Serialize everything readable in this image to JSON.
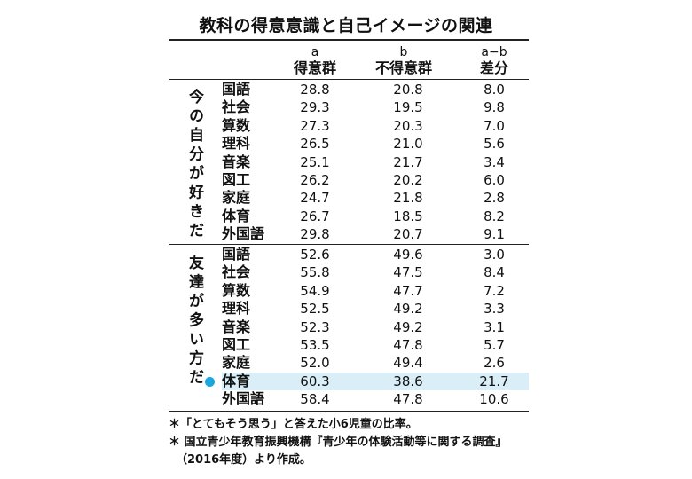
{
  "title": "教科の得意意識と自己イメージの関連",
  "columns": {
    "a": {
      "sub": "a",
      "label": "得意群"
    },
    "b": {
      "sub": "b",
      "label": "不得意群"
    },
    "diff": {
      "sub": "a−b",
      "label": "差分"
    }
  },
  "groups": [
    {
      "label": "今の自分が好きだ",
      "rows": [
        {
          "subject": "国語",
          "a": "28.8",
          "b": "20.8",
          "diff": "8.0"
        },
        {
          "subject": "社会",
          "a": "29.3",
          "b": "19.5",
          "diff": "9.8"
        },
        {
          "subject": "算数",
          "a": "27.3",
          "b": "20.3",
          "diff": "7.0"
        },
        {
          "subject": "理科",
          "a": "26.5",
          "b": "21.0",
          "diff": "5.6"
        },
        {
          "subject": "音楽",
          "a": "25.1",
          "b": "21.7",
          "diff": "3.4"
        },
        {
          "subject": "図工",
          "a": "26.2",
          "b": "20.2",
          "diff": "6.0"
        },
        {
          "subject": "家庭",
          "a": "24.7",
          "b": "21.8",
          "diff": "2.8"
        },
        {
          "subject": "体育",
          "a": "26.7",
          "b": "18.5",
          "diff": "8.2"
        },
        {
          "subject": "外国語",
          "a": "29.8",
          "b": "20.7",
          "diff": "9.1"
        }
      ]
    },
    {
      "label": "友達が多い方だ",
      "rows": [
        {
          "subject": "国語",
          "a": "52.6",
          "b": "49.6",
          "diff": "3.0"
        },
        {
          "subject": "社会",
          "a": "55.8",
          "b": "47.5",
          "diff": "8.4"
        },
        {
          "subject": "算数",
          "a": "54.9",
          "b": "47.7",
          "diff": "7.2"
        },
        {
          "subject": "理科",
          "a": "52.5",
          "b": "49.2",
          "diff": "3.3"
        },
        {
          "subject": "音楽",
          "a": "52.3",
          "b": "49.2",
          "diff": "3.1"
        },
        {
          "subject": "図工",
          "a": "53.5",
          "b": "47.8",
          "diff": "5.7"
        },
        {
          "subject": "家庭",
          "a": "52.0",
          "b": "49.4",
          "diff": "2.6"
        },
        {
          "subject": "体育",
          "a": "60.3",
          "b": "38.6",
          "diff": "21.7",
          "highlight": true
        },
        {
          "subject": "外国語",
          "a": "58.4",
          "b": "47.8",
          "diff": "10.6"
        }
      ]
    }
  ],
  "highlight_color": "#d9eef7",
  "marker_color": "#1aa7e0",
  "notes": [
    "＊「とてもそう思う」と答えた小6児童の比率。",
    "＊ 国立青少年教育振興機構『青少年の体験活動等に関する調査』",
    "（2016年度）より作成。"
  ]
}
